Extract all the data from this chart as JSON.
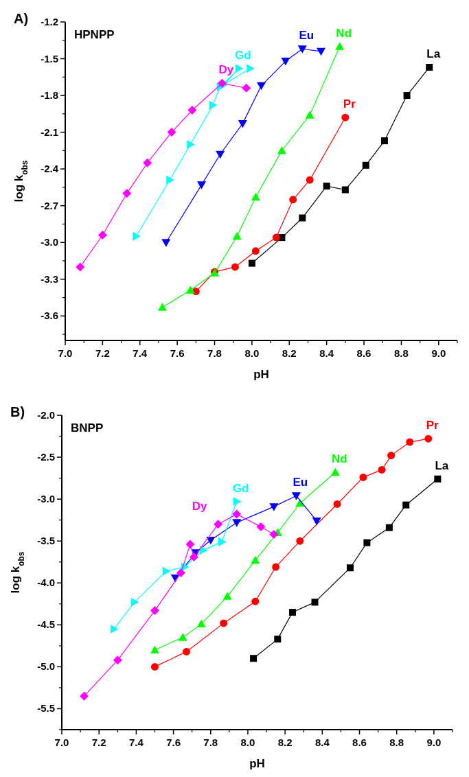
{
  "chart_data": [
    {
      "type": "line",
      "title": "HPNPP",
      "xlabel": "pH",
      "ylabel": "log k$_{obs}$",
      "annotations": [
        "A)"
      ],
      "xlim": [
        7.0,
        9.1
      ],
      "ylim": [
        -3.8,
        -1.2
      ],
      "xticks": [
        {
          "value": 7,
          "label": "7.0"
        },
        {
          "value": 7.2,
          "label": "7.2"
        },
        {
          "value": 7.4,
          "label": "7.4"
        },
        {
          "value": 7.6,
          "label": "7.6"
        },
        {
          "value": 7.8,
          "label": "7.8"
        },
        {
          "value": 8,
          "label": "8.0"
        },
        {
          "value": 8.2,
          "label": "8.2"
        },
        {
          "value": 8.4,
          "label": "8.4"
        },
        {
          "value": 8.6,
          "label": "8.6"
        },
        {
          "value": 8.8,
          "label": "8.8"
        },
        {
          "value": 9,
          "label": "9.0"
        }
      ],
      "yticks": [
        -1.2,
        -1.5,
        -1.8,
        -2.1,
        -2.4,
        -2.7,
        {
          "value": -3,
          "label": "-3.0"
        },
        -3.3,
        -3.6
      ],
      "grid": false,
      "series": [
        {
          "name": "La",
          "color": "#000000",
          "marker": "square",
          "x": [
            8.0,
            8.16,
            8.27,
            8.4,
            8.5,
            8.61,
            8.71,
            8.83,
            8.95
          ],
          "values": [
            -3.17,
            -2.96,
            -2.8,
            -2.54,
            -2.57,
            -2.37,
            -2.17,
            -1.8,
            -1.57
          ]
        },
        {
          "name": "Pr",
          "color": "#ff0000",
          "marker": "circle",
          "x": [
            7.7,
            7.8,
            7.91,
            8.02,
            8.13,
            8.22,
            8.31,
            8.5
          ],
          "values": [
            -3.4,
            -3.24,
            -3.2,
            -3.07,
            -2.96,
            -2.65,
            -2.49,
            -1.98
          ]
        },
        {
          "name": "Nd",
          "color": "#00ff00",
          "marker": "triangle",
          "x": [
            7.52,
            7.67,
            7.8,
            7.92,
            8.02,
            8.16,
            8.31,
            8.47
          ],
          "values": [
            -3.53,
            -3.39,
            -3.25,
            -2.95,
            -2.63,
            -2.25,
            -1.96,
            -1.4
          ]
        },
        {
          "name": "Eu",
          "color": "#0000ff",
          "marker": "triangle-down",
          "x": [
            7.54,
            7.73,
            7.83,
            7.95,
            8.05,
            8.18,
            8.27,
            8.37
          ],
          "values": [
            -3.0,
            -2.53,
            -2.28,
            -2.03,
            -1.72,
            -1.52,
            -1.42,
            -1.44
          ]
        },
        {
          "name": "Gd",
          "color": "#00ffff",
          "marker": "triangle-right",
          "x": [
            7.38,
            7.56,
            7.67,
            7.79,
            7.83,
            7.93,
            7.85,
            7.99
          ],
          "values": [
            -2.95,
            -2.49,
            -2.2,
            -1.88,
            -1.73,
            -1.58,
            -1.71,
            -1.58
          ]
        },
        {
          "name": "Dy",
          "color": "#ff00ff",
          "marker": "diamond",
          "x": [
            7.08,
            7.2,
            7.33,
            7.44,
            7.57,
            7.68,
            7.84,
            7.97
          ],
          "values": [
            -3.2,
            -2.94,
            -2.6,
            -2.35,
            -2.1,
            -1.92,
            -1.7,
            -1.74
          ]
        }
      ]
    },
    {
      "type": "line",
      "title": "BNPP",
      "xlabel": "pH",
      "ylabel": "log k$_{obs}$",
      "annotations": [
        "B)"
      ],
      "xlim": [
        7.0,
        9.1
      ],
      "ylim": [
        -5.75,
        -2.0
      ],
      "xticks": [
        {
          "value": 7,
          "label": "7.0"
        },
        {
          "value": 7.2,
          "label": "7.2"
        },
        {
          "value": 7.4,
          "label": "7.4"
        },
        {
          "value": 7.6,
          "label": "7.6"
        },
        {
          "value": 7.8,
          "label": "7.8"
        },
        {
          "value": 8,
          "label": "8.0"
        },
        {
          "value": 8.2,
          "label": "8.2"
        },
        {
          "value": 8.4,
          "label": "8.4"
        },
        {
          "value": 8.6,
          "label": "8.6"
        },
        {
          "value": 8.8,
          "label": "8.8"
        },
        {
          "value": 9,
          "label": "9.0"
        }
      ],
      "yticks": [
        {
          "value": -2,
          "label": "-2.0"
        },
        -2.5,
        {
          "value": -3,
          "label": "-3.0"
        },
        -3.5,
        {
          "value": -4,
          "label": "-4.0"
        },
        -4.5,
        {
          "value": -5,
          "label": "-5.0"
        },
        -5.5
      ],
      "grid": false,
      "series": [
        {
          "name": "La",
          "color": "#000000",
          "marker": "square",
          "x": [
            8.03,
            8.16,
            8.24,
            8.36,
            8.55,
            8.64,
            8.76,
            8.85,
            9.02
          ],
          "values": [
            -4.9,
            -4.67,
            -4.35,
            -4.23,
            -3.82,
            -3.52,
            -3.34,
            -3.07,
            -2.76
          ]
        },
        {
          "name": "Pr",
          "color": "#ff0000",
          "marker": "circle",
          "x": [
            7.5,
            7.67,
            7.87,
            8.04,
            8.15,
            8.28,
            8.48,
            8.62,
            8.72,
            8.77,
            8.87,
            8.97
          ],
          "values": [
            -5.0,
            -4.82,
            -4.48,
            -4.22,
            -3.81,
            -3.5,
            -3.06,
            -2.74,
            -2.65,
            -2.48,
            -2.32,
            -2.28
          ]
        },
        {
          "name": "Nd",
          "color": "#00ff00",
          "marker": "triangle",
          "x": [
            7.5,
            7.65,
            7.75,
            7.89,
            8.04,
            8.16,
            8.28,
            8.47
          ],
          "values": [
            -4.8,
            -4.65,
            -4.49,
            -4.16,
            -3.73,
            -3.4,
            -3.05,
            -2.68
          ]
        },
        {
          "name": "Eu",
          "color": "#0000ff",
          "marker": "triangle-down",
          "x": [
            7.61,
            7.72,
            7.8,
            7.94,
            8.14,
            8.26,
            8.37
          ],
          "values": [
            -3.94,
            -3.64,
            -3.49,
            -3.28,
            -3.09,
            -2.96,
            -3.26
          ]
        },
        {
          "name": "Gd",
          "color": "#00ffff",
          "marker": "triangle-right",
          "x": [
            7.28,
            7.39,
            7.56,
            7.66,
            7.76,
            7.86,
            7.94
          ],
          "values": [
            -4.55,
            -4.23,
            -3.86,
            -3.81,
            -3.61,
            -3.51,
            -3.03
          ]
        },
        {
          "name": "Dy",
          "color": "#ff00ff",
          "marker": "diamond",
          "x": [
            7.12,
            7.3,
            7.5,
            7.64,
            7.69,
            7.71,
            7.84,
            7.94,
            8.07,
            8.14
          ],
          "values": [
            -5.35,
            -4.92,
            -4.33,
            -3.88,
            -3.54,
            -3.69,
            -3.3,
            -3.18,
            -3.33,
            -3.42
          ]
        }
      ]
    }
  ]
}
